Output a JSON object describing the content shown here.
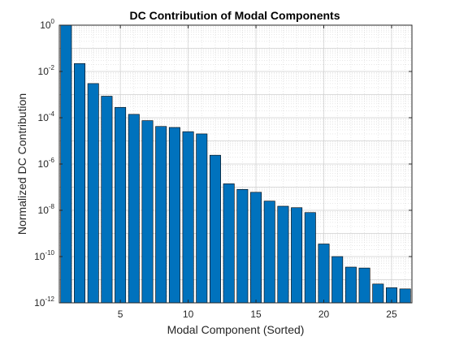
{
  "chart_data": {
    "type": "bar",
    "title": "DC Contribution of Modal Components",
    "xlabel": "Modal Component (Sorted)",
    "ylabel": "Normalized DC Contribution",
    "yscale": "log",
    "xlim": [
      0.5,
      26.5
    ],
    "ylim": [
      1e-12,
      1
    ],
    "x_ticks": [
      5,
      10,
      15,
      20,
      25
    ],
    "y_tick_labels": [
      {
        "base": "10",
        "exp": "0",
        "value": 1
      },
      {
        "base": "10",
        "exp": "-2",
        "value": 0.01
      },
      {
        "base": "10",
        "exp": "-4",
        "value": 0.0001
      },
      {
        "base": "10",
        "exp": "-6",
        "value": 1e-06
      },
      {
        "base": "10",
        "exp": "-8",
        "value": 1e-08
      },
      {
        "base": "10",
        "exp": "-10",
        "value": 1e-10
      },
      {
        "base": "10",
        "exp": "-12",
        "value": 1e-12
      }
    ],
    "grid": true,
    "minor_grid": true,
    "bar_color": "#0072BD",
    "categories": [
      1,
      2,
      3,
      4,
      5,
      6,
      7,
      8,
      9,
      10,
      11,
      12,
      13,
      14,
      15,
      16,
      17,
      18,
      19,
      20,
      21,
      22,
      23,
      24,
      25,
      26
    ],
    "values": [
      1.0,
      0.022,
      0.003,
      0.00085,
      0.00028,
      0.00014,
      7.5e-05,
      4.2e-05,
      3.8e-05,
      2.5e-05,
      2e-05,
      2.4e-06,
      1.4e-07,
      8e-08,
      6e-08,
      2.5e-08,
      1.5e-08,
      1.3e-08,
      8e-09,
      3.5e-10,
      1e-10,
      3.5e-11,
      3.2e-11,
      6.5e-12,
      4.5e-12,
      4e-12
    ]
  }
}
